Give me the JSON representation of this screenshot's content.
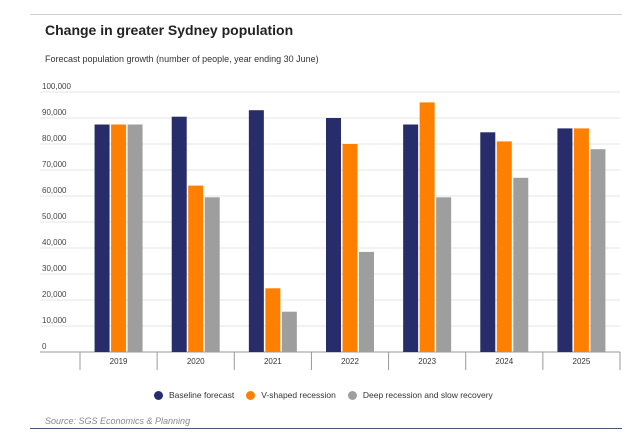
{
  "chart_data": {
    "type": "bar",
    "title": "Change in greater Sydney population",
    "subtitle": "Forecast population growth (number of people, year ending 30 June)",
    "categories": [
      "2019",
      "2020",
      "2021",
      "2022",
      "2023",
      "2024",
      "2025"
    ],
    "series": [
      {
        "name": "Baseline forecast",
        "color": "#272c6b",
        "values": [
          87500,
          90500,
          93000,
          90000,
          87500,
          84500,
          86000
        ]
      },
      {
        "name": "V-shaped recession",
        "color": "#ff8000",
        "values": [
          87500,
          64000,
          24500,
          80000,
          96000,
          81000,
          86000
        ]
      },
      {
        "name": "Deep recession and slow recovery",
        "color": "#9e9e9e",
        "values": [
          87500,
          59500,
          15500,
          38500,
          59500,
          67000,
          78000
        ]
      }
    ],
    "ylim": [
      0,
      100000
    ],
    "yticks": [
      "0",
      "10,000",
      "20,000",
      "30,000",
      "40,000",
      "50,000",
      "60,000",
      "70,000",
      "80,000",
      "90,000",
      "100,000"
    ],
    "xlabel": "",
    "ylabel": "",
    "grid": true,
    "legend": "bottom",
    "source": "Source: SGS Economics & Planning"
  }
}
